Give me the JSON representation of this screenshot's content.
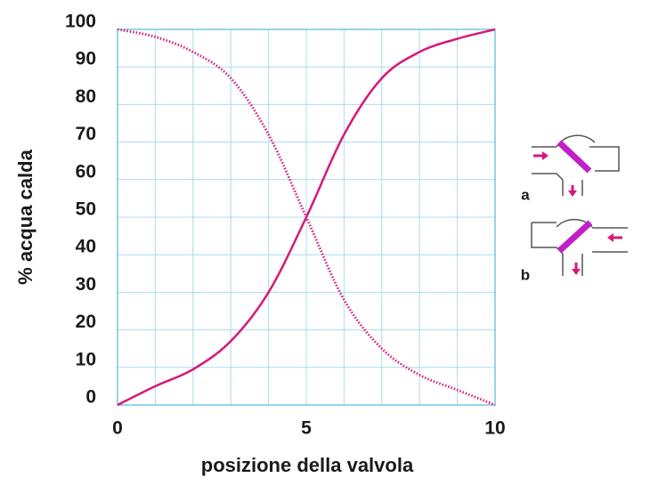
{
  "chart_data": {
    "type": "line",
    "x_label": "posizione della valvola",
    "y_label": "% acqua calda",
    "x": [
      0,
      1,
      2,
      3,
      4,
      5,
      6,
      7,
      8,
      9,
      10
    ],
    "series": [
      {
        "color": "#d6187a",
        "style": "solid",
        "values": [
          0,
          5,
          9.5,
          17,
          30,
          50,
          72,
          87,
          94,
          97.5,
          100
        ]
      },
      {
        "color": "#d6187a",
        "style": "dotted",
        "values": [
          100,
          98,
          94,
          87,
          72,
          50,
          28,
          15,
          8,
          4,
          0
        ]
      }
    ],
    "xlim": [
      0,
      10
    ],
    "ylim": [
      0,
      100
    ],
    "xticks": [
      0,
      5,
      10
    ],
    "xgrid": [
      0,
      1,
      2,
      3,
      4,
      5,
      6,
      7,
      8,
      9,
      10
    ],
    "yticks": [
      0,
      10,
      20,
      30,
      40,
      50,
      60,
      70,
      80,
      90,
      100
    ],
    "grid": true,
    "diagram_labels": [
      "a",
      "b"
    ]
  }
}
